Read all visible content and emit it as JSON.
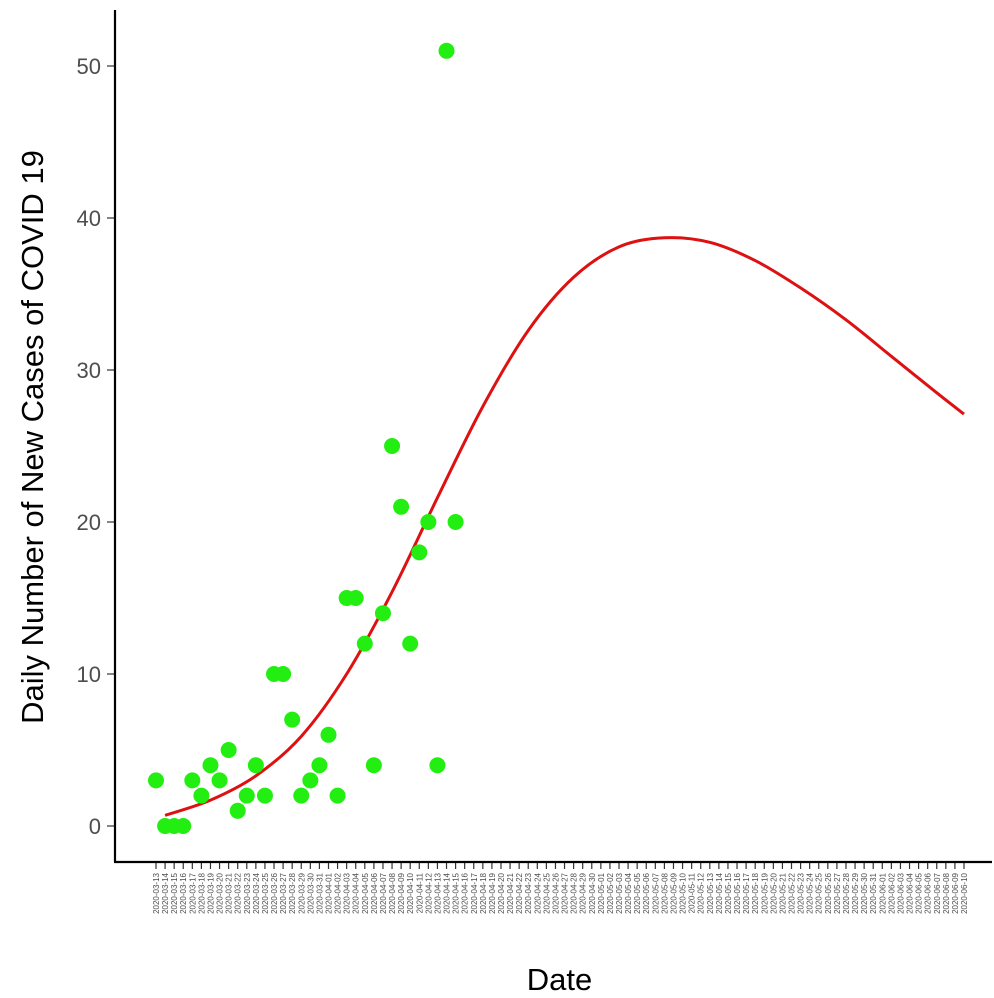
{
  "chart_data": {
    "type": "scatter",
    "xlabel": "Date",
    "ylabel": "Daily Number of New Cases of COVID 19",
    "ylim": [
      -2.5,
      53.5
    ],
    "y_ticks": [
      0,
      10,
      20,
      30,
      40,
      50
    ],
    "start_date": "2020-03-13",
    "end_date": "2020-06-10",
    "point_color": "#22ee11",
    "line_color": "#dd1111",
    "grid": false,
    "legend": "none",
    "series": [
      {
        "type": "scatter",
        "x": [
          "2020-03-13",
          "2020-03-14",
          "2020-03-15",
          "2020-03-16",
          "2020-03-17",
          "2020-03-18",
          "2020-03-19",
          "2020-03-20",
          "2020-03-21",
          "2020-03-22",
          "2020-03-23",
          "2020-03-24",
          "2020-03-25",
          "2020-03-26",
          "2020-03-27",
          "2020-03-28",
          "2020-03-29",
          "2020-03-30",
          "2020-03-31",
          "2020-04-01",
          "2020-04-02",
          "2020-04-03",
          "2020-04-04",
          "2020-04-05",
          "2020-04-06",
          "2020-04-07",
          "2020-04-08",
          "2020-04-09",
          "2020-04-10",
          "2020-04-11",
          "2020-04-12",
          "2020-04-13",
          "2020-04-14",
          "2020-04-15"
        ],
        "y": [
          3,
          0,
          0,
          0,
          3,
          2,
          4,
          3,
          5,
          1,
          2,
          4,
          2,
          10,
          10,
          7,
          2,
          3,
          4,
          6,
          2,
          15,
          15,
          12,
          4,
          14,
          25,
          21,
          12,
          18,
          20,
          4,
          51,
          20
        ]
      },
      {
        "type": "line",
        "x": [
          "2020-03-14",
          "2020-03-19",
          "2020-03-24",
          "2020-03-29",
          "2020-04-03",
          "2020-04-08",
          "2020-04-13",
          "2020-04-18",
          "2020-04-23",
          "2020-04-28",
          "2020-05-03",
          "2020-05-08",
          "2020-05-13",
          "2020-05-18",
          "2020-05-23",
          "2020-05-28",
          "2020-06-02",
          "2020-06-07",
          "2020-06-10"
        ],
        "y": [
          0.7,
          1.7,
          3.3,
          5.9,
          10.0,
          15.4,
          21.6,
          27.6,
          32.6,
          36.1,
          38.1,
          38.7,
          38.4,
          37.2,
          35.4,
          33.3,
          30.9,
          28.5,
          27.1
        ]
      }
    ]
  }
}
